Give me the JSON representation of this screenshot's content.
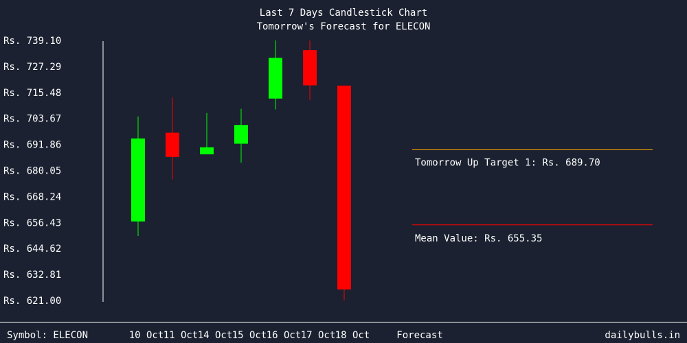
{
  "chart_data": {
    "type": "candlestick",
    "title": "Last 7 Days Candlestick Chart",
    "subtitle": "Tomorrow's Forecast for ELECON",
    "ylim": [
      621.0,
      739.1
    ],
    "y_ticks": [
      "Rs. 739.10",
      "Rs. 727.29",
      "Rs. 715.48",
      "Rs. 703.67",
      "Rs. 691.86",
      "Rs. 680.05",
      "Rs. 668.24",
      "Rs. 656.43",
      "Rs. 644.62",
      "Rs. 632.81",
      "Rs. 621.00"
    ],
    "categories": [
      "10 Oct",
      "11 Oct",
      "14 Oct",
      "15 Oct",
      "16 Oct",
      "17 Oct",
      "18 Oct"
    ],
    "candles": [
      {
        "date": "10 Oct",
        "open": 656.9,
        "close": 694.6,
        "high": 704.6,
        "low": 650.3
      },
      {
        "date": "11 Oct",
        "open": 697.2,
        "close": 686.2,
        "high": 713.1,
        "low": 676.0
      },
      {
        "date": "14 Oct",
        "open": 687.4,
        "close": 690.6,
        "high": 706.2,
        "low": 687.4
      },
      {
        "date": "15 Oct",
        "open": 692.2,
        "close": 700.7,
        "high": 708.1,
        "low": 683.6
      },
      {
        "date": "16 Oct",
        "open": 712.7,
        "close": 731.2,
        "high": 739.1,
        "low": 707.8
      },
      {
        "date": "17 Oct",
        "open": 734.7,
        "close": 718.7,
        "high": 739.1,
        "low": 712.1
      },
      {
        "date": "18 Oct",
        "open": 718.6,
        "close": 626.0,
        "high": 718.6,
        "low": 621.0
      }
    ],
    "colors": {
      "up": "#00ff00",
      "down": "#ff0000",
      "up_target_line": "#ffa500",
      "mean_line": "#ff0000"
    },
    "forecast": {
      "label": "Forecast",
      "up_target": {
        "label": "Tomorrow Up Target 1: Rs. 689.70",
        "value": 689.7
      },
      "mean": {
        "label": "Mean Value: Rs. 655.35",
        "value": 655.35
      }
    },
    "grid": false
  },
  "footer": {
    "symbol": "Symbol: ELECON",
    "site": "dailybulls.in"
  }
}
